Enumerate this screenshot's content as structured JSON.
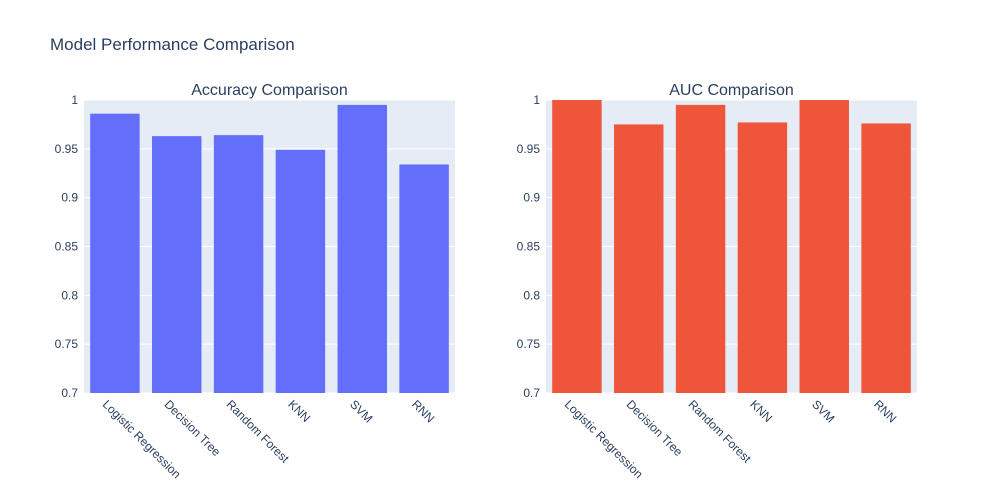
{
  "figure": {
    "title": "Model Performance Comparison"
  },
  "chart_data": [
    {
      "type": "bar",
      "title": "Accuracy Comparison",
      "xlabel": "",
      "ylabel": "",
      "categories": [
        "Logistic Regression",
        "Decision Tree",
        "Random Forest",
        "KNN",
        "SVM",
        "RNN"
      ],
      "values": [
        0.986,
        0.963,
        0.964,
        0.949,
        0.995,
        0.934
      ],
      "ylim": [
        0.7,
        1.0
      ],
      "yticks": [
        "0.7",
        "0.75",
        "0.8",
        "0.85",
        "0.9",
        "0.95",
        "1"
      ],
      "color": "#636efa",
      "grid": true
    },
    {
      "type": "bar",
      "title": "AUC Comparison",
      "xlabel": "",
      "ylabel": "",
      "categories": [
        "Logistic Regression",
        "Decision Tree",
        "Random Forest",
        "KNN",
        "SVM",
        "RNN"
      ],
      "values": [
        1.0,
        0.975,
        0.995,
        0.977,
        1.0,
        0.976
      ],
      "ylim": [
        0.7,
        1.0
      ],
      "yticks": [
        "0.7",
        "0.75",
        "0.8",
        "0.85",
        "0.9",
        "0.95",
        "1"
      ],
      "color": "#ef553b",
      "grid": true
    }
  ]
}
